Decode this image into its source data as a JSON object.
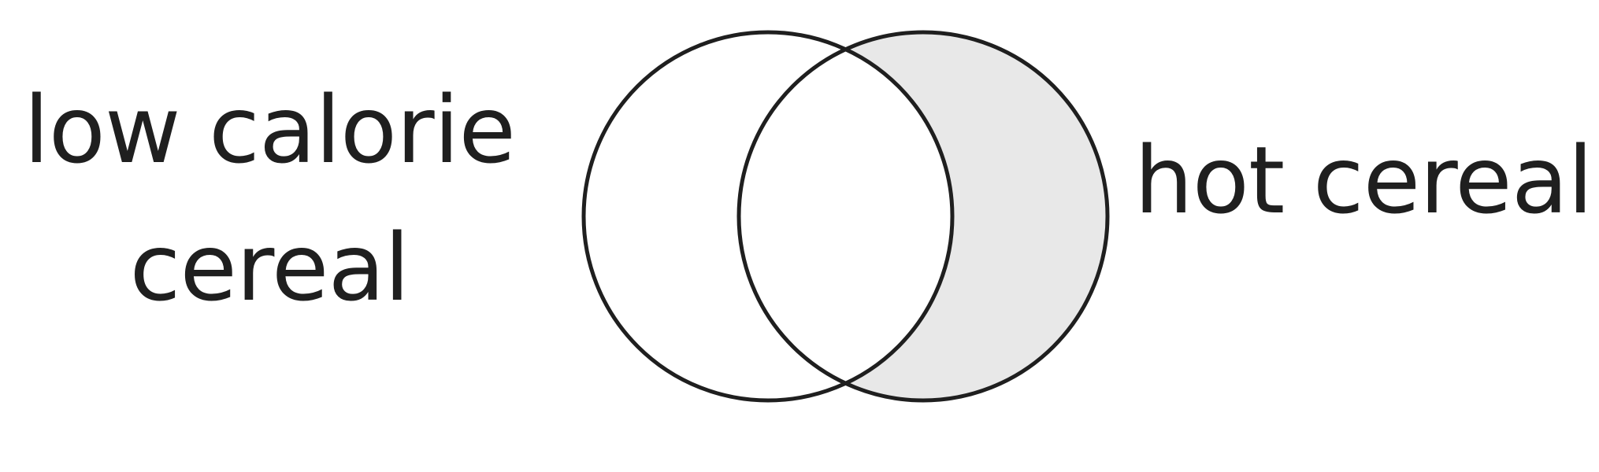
{
  "diagram": {
    "set_a": {
      "label_lines": [
        "low calorie",
        "cereal"
      ]
    },
    "set_b": {
      "label": "hot cereal"
    },
    "shaded_region": "set_b_only",
    "colors": {
      "stroke": "#1f1f1f",
      "shade": "#e8e8e8",
      "background": "#ffffff"
    }
  }
}
